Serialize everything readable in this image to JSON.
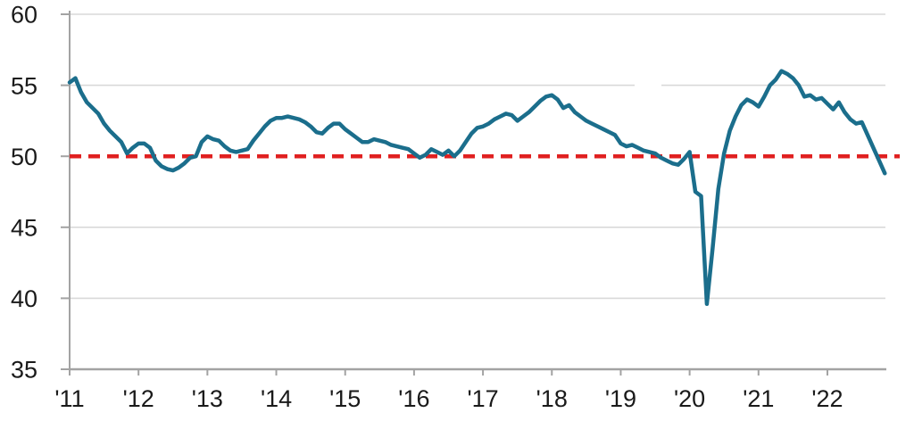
{
  "chart_data": {
    "type": "line",
    "title": "",
    "xlabel": "",
    "ylabel": "",
    "grid": true,
    "legend": "none",
    "ylim": [
      35,
      60
    ],
    "y_ticks": [
      60,
      55,
      50,
      45,
      40,
      35
    ],
    "y_tick_labels": [
      "60",
      "55",
      "50",
      "45",
      "40",
      "35"
    ],
    "x_tick_labels": [
      "'11",
      "'12",
      "'13",
      "'14",
      "'15",
      "'16",
      "'17",
      "'18",
      "'19",
      "'20",
      "'21",
      "'22"
    ],
    "frequency": "monthly",
    "x_start": "2011-01",
    "x_end": "2022-11",
    "threshold_line": {
      "value": 50,
      "style": "dashed",
      "color": "#e02020"
    },
    "series": [
      {
        "name": "",
        "values": [
          55.2,
          55.5,
          54.5,
          53.8,
          53.4,
          53.0,
          52.3,
          51.8,
          51.4,
          51.0,
          50.2,
          50.6,
          50.9,
          50.9,
          50.6,
          49.7,
          49.3,
          49.1,
          49.0,
          49.2,
          49.5,
          49.9,
          50.0,
          51.0,
          51.4,
          51.2,
          51.1,
          50.7,
          50.4,
          50.3,
          50.4,
          50.5,
          51.1,
          51.6,
          52.1,
          52.5,
          52.7,
          52.7,
          52.8,
          52.7,
          52.6,
          52.4,
          52.1,
          51.7,
          51.6,
          52.0,
          52.3,
          52.3,
          51.9,
          51.6,
          51.3,
          51.0,
          51.0,
          51.2,
          51.1,
          51.0,
          50.8,
          50.7,
          50.6,
          50.5,
          50.2,
          49.9,
          50.1,
          50.5,
          50.3,
          50.1,
          50.4,
          50.0,
          50.4,
          51.0,
          51.6,
          52.0,
          52.1,
          52.3,
          52.6,
          52.8,
          53.0,
          52.9,
          52.5,
          52.8,
          53.1,
          53.5,
          53.9,
          54.2,
          54.3,
          54.0,
          53.4,
          53.6,
          53.1,
          52.8,
          52.5,
          52.3,
          52.1,
          51.9,
          51.7,
          51.5,
          50.9,
          50.7,
          50.8,
          50.6,
          50.4,
          50.3,
          50.2,
          49.9,
          49.7,
          49.5,
          49.4,
          49.8,
          50.3,
          47.5,
          47.2,
          39.6,
          43.5,
          47.7,
          50.2,
          51.8,
          52.8,
          53.6,
          54.0,
          53.8,
          53.5,
          54.2,
          55.0,
          55.4,
          56.0,
          55.8,
          55.5,
          55.0,
          54.2,
          54.3,
          54.0,
          54.1,
          53.7,
          53.3,
          53.8,
          53.1,
          52.6,
          52.3,
          52.4,
          51.5,
          50.6,
          49.7,
          48.8
        ]
      }
    ],
    "colors": {
      "line": "#1b6e8c",
      "threshold": "#e02020",
      "grid": "#d9d9d9",
      "axis": "#a3a3a3",
      "labels": "#1a1a1a",
      "background": "#ffffff"
    }
  }
}
